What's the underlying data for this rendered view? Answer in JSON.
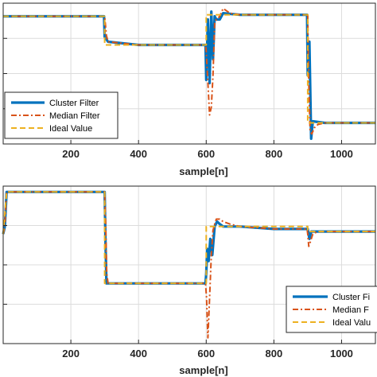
{
  "chart_data": [
    {
      "type": "line",
      "xlabel": "sample[n]",
      "ylabel": "",
      "title": "",
      "xlim": [
        0,
        1100
      ],
      "x_ticks": [
        200,
        400,
        600,
        800,
        1000
      ],
      "x_tick_labels": [
        "200",
        "400",
        "600",
        "800",
        "1000"
      ],
      "grid": true,
      "legend_position": "bottom-left",
      "series": [
        {
          "name": "Cluster Filter",
          "color": "#0072BD",
          "style": "solid",
          "x": [
            0,
            298,
            300,
            310,
            400,
            598,
            600,
            605,
            610,
            615,
            620,
            625,
            630,
            640,
            650,
            700,
            800,
            898,
            900,
            905,
            910,
            915,
            950,
            1000,
            1100
          ],
          "y": [
            0.82,
            0.82,
            0.69,
            0.66,
            0.64,
            0.64,
            0.42,
            0.8,
            0.4,
            0.85,
            0.55,
            0.82,
            0.8,
            0.8,
            0.84,
            0.83,
            0.83,
            0.83,
            0.45,
            0.66,
            0.05,
            0.16,
            0.15,
            0.15,
            0.15
          ]
        },
        {
          "name": "Median Filter",
          "color": "#D95319",
          "style": "dash-dot",
          "x": [
            0,
            300,
            305,
            310,
            400,
            598,
            600,
            605,
            610,
            615,
            620,
            625,
            630,
            640,
            650,
            670,
            700,
            800,
            900,
            903,
            907,
            912,
            920,
            930,
            950,
            1000,
            1100
          ],
          "y": [
            0.82,
            0.82,
            0.7,
            0.66,
            0.64,
            0.64,
            0.6,
            0.4,
            0.2,
            0.25,
            0.45,
            0.78,
            0.8,
            0.82,
            0.87,
            0.84,
            0.83,
            0.83,
            0.83,
            0.4,
            0.1,
            0.08,
            0.12,
            0.14,
            0.15,
            0.15,
            0.15
          ]
        },
        {
          "name": "Ideal Value",
          "color": "#EDB120",
          "style": "dashed",
          "x": [
            0,
            300,
            300,
            600,
            600,
            900,
            900,
            1100
          ],
          "y": [
            0.82,
            0.82,
            0.64,
            0.64,
            0.83,
            0.83,
            0.15,
            0.15
          ]
        }
      ]
    },
    {
      "type": "line",
      "xlabel": "sample[n]",
      "ylabel": "",
      "title": "",
      "xlim": [
        0,
        1100
      ],
      "x_ticks": [
        200,
        400,
        600,
        800,
        1000
      ],
      "x_tick_labels": [
        "200",
        "400",
        "600",
        "800",
        "1000"
      ],
      "grid": true,
      "legend_position": "bottom-right",
      "series": [
        {
          "name": "Cluster Fi",
          "color": "#0072BD",
          "style": "solid",
          "x": [
            0,
            5,
            10,
            300,
            302,
            305,
            310,
            400,
            598,
            600,
            603,
            607,
            612,
            618,
            625,
            632,
            640,
            650,
            700,
            800,
            900,
            905,
            910,
            1000,
            1100
          ],
          "y": [
            0.62,
            0.68,
            0.96,
            0.96,
            0.6,
            0.22,
            0.22,
            0.22,
            0.22,
            0.3,
            0.5,
            0.4,
            0.58,
            0.45,
            0.68,
            0.72,
            0.7,
            0.68,
            0.68,
            0.66,
            0.66,
            0.58,
            0.64,
            0.64,
            0.64
          ]
        },
        {
          "name": "Median F",
          "color": "#D95319",
          "style": "dash-dot",
          "x": [
            0,
            5,
            10,
            300,
            303,
            306,
            310,
            400,
            598,
            601,
            605,
            610,
            615,
            620,
            625,
            630,
            640,
            650,
            670,
            700,
            800,
            898,
            900,
            903,
            907,
            915,
            930,
            1000,
            1100
          ],
          "y": [
            0.62,
            0.68,
            0.96,
            0.96,
            0.7,
            0.3,
            0.22,
            0.22,
            0.22,
            0.1,
            -0.22,
            0.1,
            0.45,
            0.65,
            0.7,
            0.74,
            0.74,
            0.72,
            0.7,
            0.68,
            0.66,
            0.66,
            0.62,
            0.52,
            0.55,
            0.62,
            0.64,
            0.64,
            0.64
          ]
        },
        {
          "name": "Ideal Valu",
          "color": "#EDB120",
          "style": "dashed",
          "x": [
            0,
            10,
            300,
            300,
            600,
            600,
            900,
            900,
            1100
          ],
          "y": [
            0.62,
            0.96,
            0.96,
            0.22,
            0.22,
            0.68,
            0.68,
            0.64,
            0.64
          ]
        }
      ]
    }
  ]
}
